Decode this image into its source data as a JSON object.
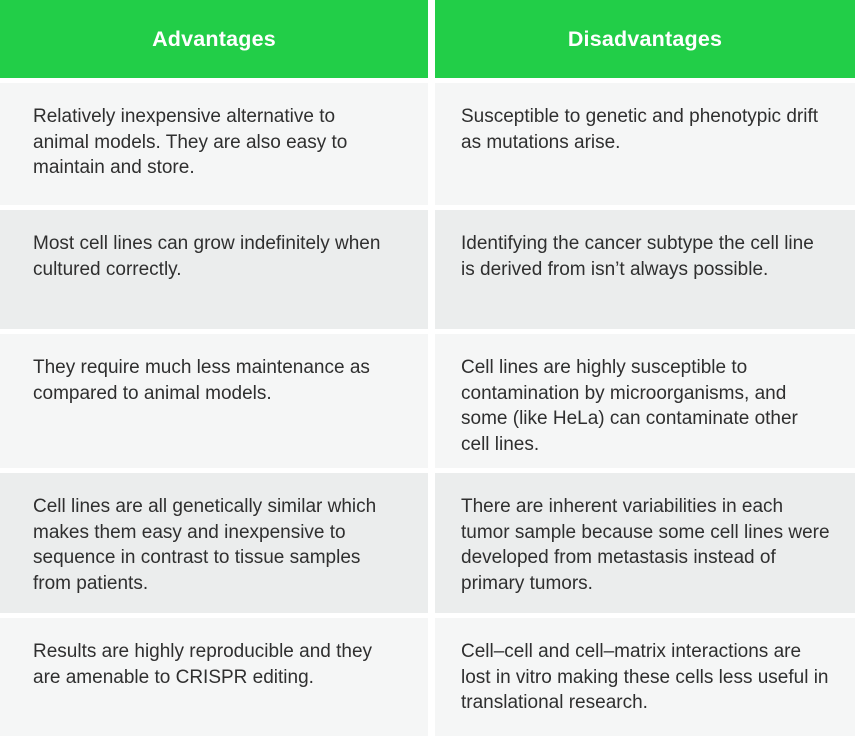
{
  "colors": {
    "header_bg": "#22ce48",
    "header_text": "#ffffff",
    "row_light_bg": "#f5f6f6",
    "row_dark_bg": "#ebeded",
    "gap": "#ffffff",
    "body_text": "#2f2f2f"
  },
  "table": {
    "headers": {
      "advantages": "Advantages",
      "disadvantages": "Disadvantages"
    },
    "rows": [
      {
        "advantage": "Relatively inexpensive alternative to animal models. They are also easy to maintain and store.",
        "disadvantage": "Susceptible to genetic and phenotypic drift as mutations arise."
      },
      {
        "advantage": "Most cell lines can grow indefinitely when cultured correctly.",
        "disadvantage": "Identifying the cancer subtype the cell line is derived from isn’t always possible."
      },
      {
        "advantage": "They require much less maintenance as compared to animal models.",
        "disadvantage": "Cell lines are highly susceptible to contamination by microorganisms, and some (like HeLa) can contaminate other cell lines."
      },
      {
        "advantage": "Cell lines are all genetically similar which makes them easy and inexpensive to sequence in contrast to tissue samples from patients.",
        "disadvantage": "There are inherent variabilities in each tumor sample because some cell lines were developed from metastasis instead of primary tumors."
      },
      {
        "advantage": "Results are highly reproducible and they are amenable to CRISPR editing.",
        "disadvantage": "Cell–cell and cell–matrix interactions are lost in vitro making these cells less useful in translational research."
      }
    ]
  }
}
